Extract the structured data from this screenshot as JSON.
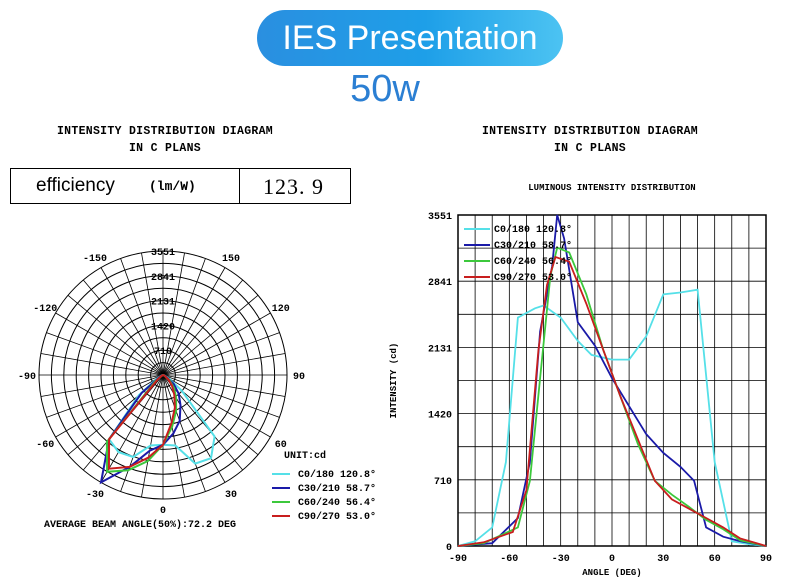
{
  "header": {
    "title": "IES Presentation",
    "wattage": "50w"
  },
  "left_panel": {
    "title_line1": "INTENSITY DISTRIBUTION DIAGRAM",
    "title_line2": "IN C PLANS",
    "efficiency": {
      "label": "efficiency",
      "unit": "(lm/W)",
      "value": "123. 9"
    }
  },
  "right_panel": {
    "title_line1": "INTENSITY DISTRIBUTION DIAGRAM",
    "title_line2": "IN C PLANS"
  },
  "colors": {
    "c0": "#55e0e8",
    "c30": "#1a1aa8",
    "c60": "#3cc83c",
    "c90": "#c81e1e"
  },
  "chart_data": [
    {
      "type": "polar",
      "angle_labels": [
        "-150",
        "150",
        "-120",
        "120",
        "-90",
        "90",
        "-60",
        "60",
        "-30",
        "30",
        "0"
      ],
      "radial_labels": [
        "3551",
        "2841",
        "2131",
        "1420",
        "710"
      ],
      "unit": "UNIT:cd",
      "legend": [
        {
          "name": "C0/180 120.8°",
          "color": "#55e0e8"
        },
        {
          "name": "C30/210 58.7°",
          "color": "#1a1aa8"
        },
        {
          "name": "C60/240 56.4°",
          "color": "#3cc83c"
        },
        {
          "name": "C90/270 53.0°",
          "color": "#c81e1e"
        }
      ],
      "caption": "AVERAGE BEAM ANGLE(50%):72.2 DEG",
      "r_max": 3551,
      "series": [
        {
          "name": "C0/180",
          "color": "#55e0e8",
          "side_a": [
            [
              0,
              2000
            ],
            [
              10,
              2050
            ],
            [
              20,
              2700
            ],
            [
              30,
              2750
            ],
            [
              40,
              2300
            ],
            [
              50,
              700
            ],
            [
              60,
              200
            ],
            [
              70,
              50
            ],
            [
              80,
              20
            ],
            [
              90,
              0
            ]
          ],
          "side_b": [
            [
              0,
              2000
            ],
            [
              10,
              2050
            ],
            [
              20,
              2500
            ],
            [
              30,
              2550
            ],
            [
              40,
              2400
            ],
            [
              50,
              900
            ],
            [
              60,
              200
            ],
            [
              70,
              50
            ],
            [
              80,
              20
            ],
            [
              90,
              0
            ]
          ]
        },
        {
          "name": "C30/210",
          "color": "#1a1aa8",
          "side_a": [
            [
              0,
              2000
            ],
            [
              10,
              1700
            ],
            [
              20,
              1400
            ],
            [
              30,
              1000
            ],
            [
              40,
              700
            ],
            [
              50,
              400
            ],
            [
              60,
              100
            ],
            [
              70,
              20
            ],
            [
              80,
              0
            ],
            [
              90,
              0
            ]
          ],
          "side_b": [
            [
              0,
              2000
            ],
            [
              10,
              2200
            ],
            [
              20,
              2800
            ],
            [
              30,
              3551
            ],
            [
              40,
              2400
            ],
            [
              50,
              800
            ],
            [
              60,
              100
            ],
            [
              70,
              20
            ],
            [
              80,
              0
            ],
            [
              90,
              0
            ]
          ]
        },
        {
          "name": "C60/240",
          "color": "#3cc83c",
          "side_a": [
            [
              0,
              2000
            ],
            [
              10,
              1500
            ],
            [
              20,
              1100
            ],
            [
              30,
              750
            ],
            [
              40,
              500
            ],
            [
              50,
              250
            ],
            [
              60,
              60
            ],
            [
              70,
              20
            ],
            [
              80,
              0
            ],
            [
              90,
              0
            ]
          ],
          "side_b": [
            [
              0,
              2000
            ],
            [
              10,
              2500
            ],
            [
              20,
              2900
            ],
            [
              30,
              3200
            ],
            [
              40,
              2500
            ],
            [
              50,
              300
            ],
            [
              60,
              40
            ],
            [
              70,
              10
            ],
            [
              80,
              0
            ],
            [
              90,
              0
            ]
          ]
        },
        {
          "name": "C90/270",
          "color": "#c81e1e",
          "side_a": [
            [
              0,
              2000
            ],
            [
              10,
              1400
            ],
            [
              20,
              1000
            ],
            [
              30,
              650
            ],
            [
              40,
              400
            ],
            [
              50,
              200
            ],
            [
              60,
              60
            ],
            [
              70,
              20
            ],
            [
              80,
              0
            ],
            [
              90,
              0
            ]
          ],
          "side_b": [
            [
              0,
              2000
            ],
            [
              10,
              2400
            ],
            [
              20,
              2800
            ],
            [
              30,
              3100
            ],
            [
              40,
              2400
            ],
            [
              50,
              200
            ],
            [
              60,
              40
            ],
            [
              70,
              10
            ],
            [
              80,
              0
            ],
            [
              90,
              0
            ]
          ]
        }
      ]
    },
    {
      "type": "line",
      "title": "LUMINOUS INTENSITY DISTRIBUTION",
      "xlabel": "ANGLE (DEG)",
      "ylabel": "INTENSITY (cd)",
      "xlim": [
        -90,
        90
      ],
      "ylim": [
        0,
        3551
      ],
      "xticks": [
        -90,
        -60,
        -30,
        0,
        30,
        60,
        90
      ],
      "yticks": [
        0,
        710,
        1420,
        2131,
        2841,
        3551
      ],
      "grid": true,
      "legend_position": "top-left",
      "series": [
        {
          "name": "C0/180 120.8°",
          "color": "#55e0e8",
          "points": [
            [
              -90,
              0
            ],
            [
              -80,
              50
            ],
            [
              -70,
              200
            ],
            [
              -62,
              900
            ],
            [
              -55,
              2450
            ],
            [
              -45,
              2550
            ],
            [
              -40,
              2580
            ],
            [
              -30,
              2450
            ],
            [
              -20,
              2200
            ],
            [
              -12,
              2050
            ],
            [
              0,
              2000
            ],
            [
              10,
              2000
            ],
            [
              20,
              2250
            ],
            [
              30,
              2700
            ],
            [
              40,
              2720
            ],
            [
              50,
              2750
            ],
            [
              60,
              900
            ],
            [
              70,
              50
            ],
            [
              80,
              20
            ],
            [
              90,
              0
            ]
          ]
        },
        {
          "name": "C30/210 58.7°",
          "color": "#1a1aa8",
          "points": [
            [
              -90,
              0
            ],
            [
              -70,
              30
            ],
            [
              -55,
              300
            ],
            [
              -48,
              900
            ],
            [
              -42,
              2300
            ],
            [
              -35,
              3000
            ],
            [
              -32,
              3551
            ],
            [
              -28,
              3300
            ],
            [
              -20,
              2400
            ],
            [
              -10,
              2150
            ],
            [
              0,
              1800
            ],
            [
              10,
              1500
            ],
            [
              20,
              1200
            ],
            [
              30,
              1000
            ],
            [
              40,
              850
            ],
            [
              48,
              700
            ],
            [
              55,
              200
            ],
            [
              65,
              100
            ],
            [
              75,
              50
            ],
            [
              90,
              0
            ]
          ]
        },
        {
          "name": "C60/240 56.4°",
          "color": "#3cc83c",
          "points": [
            [
              -90,
              0
            ],
            [
              -75,
              30
            ],
            [
              -55,
              200
            ],
            [
              -48,
              700
            ],
            [
              -42,
              1800
            ],
            [
              -36,
              2900
            ],
            [
              -32,
              3200
            ],
            [
              -25,
              3150
            ],
            [
              -15,
              2700
            ],
            [
              -5,
              2100
            ],
            [
              5,
              1600
            ],
            [
              15,
              1100
            ],
            [
              25,
              700
            ],
            [
              35,
              550
            ],
            [
              45,
              420
            ],
            [
              55,
              280
            ],
            [
              65,
              180
            ],
            [
              75,
              60
            ],
            [
              90,
              0
            ]
          ]
        },
        {
          "name": "C90/270 53.0°",
          "color": "#c81e1e",
          "points": [
            [
              -90,
              0
            ],
            [
              -75,
              40
            ],
            [
              -58,
              150
            ],
            [
              -50,
              600
            ],
            [
              -43,
              2100
            ],
            [
              -38,
              2800
            ],
            [
              -33,
              3100
            ],
            [
              -25,
              3050
            ],
            [
              -15,
              2600
            ],
            [
              -5,
              2100
            ],
            [
              5,
              1600
            ],
            [
              15,
              1150
            ],
            [
              25,
              700
            ],
            [
              35,
              500
            ],
            [
              45,
              400
            ],
            [
              55,
              300
            ],
            [
              65,
              200
            ],
            [
              75,
              80
            ],
            [
              90,
              0
            ]
          ]
        }
      ]
    }
  ]
}
